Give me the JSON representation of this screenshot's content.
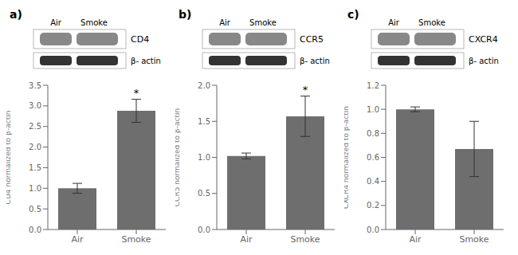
{
  "chart_data": [
    {
      "type": "bar",
      "title": "a)",
      "categories": [
        "Air",
        "Smoke"
      ],
      "values": [
        1.0,
        2.88
      ],
      "error": [
        0.12,
        0.28
      ],
      "color": "#6e6e6e",
      "ylabel": "CD4 normalized to β-actin",
      "ylim": [
        0,
        3.5
      ],
      "yticks": [
        {
          "value": 0,
          "label": "0.0"
        },
        0.5,
        {
          "value": 1.0,
          "label": "1.0"
        },
        1.5,
        {
          "value": 2.0,
          "label": "2.0"
        },
        2.5,
        {
          "value": 3.0,
          "label": "3.0"
        },
        3.5
      ],
      "annotations": [
        {
          "text": "Air"
        },
        {
          "text": "Smoke"
        },
        {
          "text": "CD4"
        },
        {
          "text": "β- actin"
        },
        {
          "text": "*",
          "category": "Smoke"
        }
      ]
    },
    {
      "type": "bar",
      "title": "b)",
      "categories": [
        "Air",
        "Smoke"
      ],
      "values": [
        1.02,
        1.57
      ],
      "error": [
        0.04,
        0.28
      ],
      "color": "#6e6e6e",
      "ylabel": "CCR5 normalized to β-actin",
      "ylim": [
        0,
        2.0
      ],
      "yticks": [
        {
          "value": 0,
          "label": "0.0"
        },
        0.5,
        {
          "value": 1.0,
          "label": "1.0"
        },
        1.5,
        {
          "value": 2.0,
          "label": "2.0"
        }
      ],
      "annotations": [
        {
          "text": "Air"
        },
        {
          "text": "Smoke"
        },
        {
          "text": "CCR5"
        },
        {
          "text": "β- actin"
        },
        {
          "text": "*",
          "category": "Smoke"
        }
      ]
    },
    {
      "type": "bar",
      "title": "c)",
      "categories": [
        "Air",
        "Smoke"
      ],
      "values": [
        1.0,
        0.67
      ],
      "error": [
        0.02,
        0.23
      ],
      "color": "#6e6e6e",
      "ylabel": "CXCR4 normalized to β-actin",
      "ylim": [
        0,
        1.2
      ],
      "yticks": [
        {
          "value": 0,
          "label": "0.0"
        },
        0.2,
        0.4,
        0.6,
        0.8,
        {
          "value": 1.0,
          "label": "1.0"
        },
        1.2
      ],
      "annotations": [
        {
          "text": "Air"
        },
        {
          "text": "Smoke"
        },
        {
          "text": "CXCR4"
        },
        {
          "text": "β- actin"
        }
      ]
    }
  ]
}
